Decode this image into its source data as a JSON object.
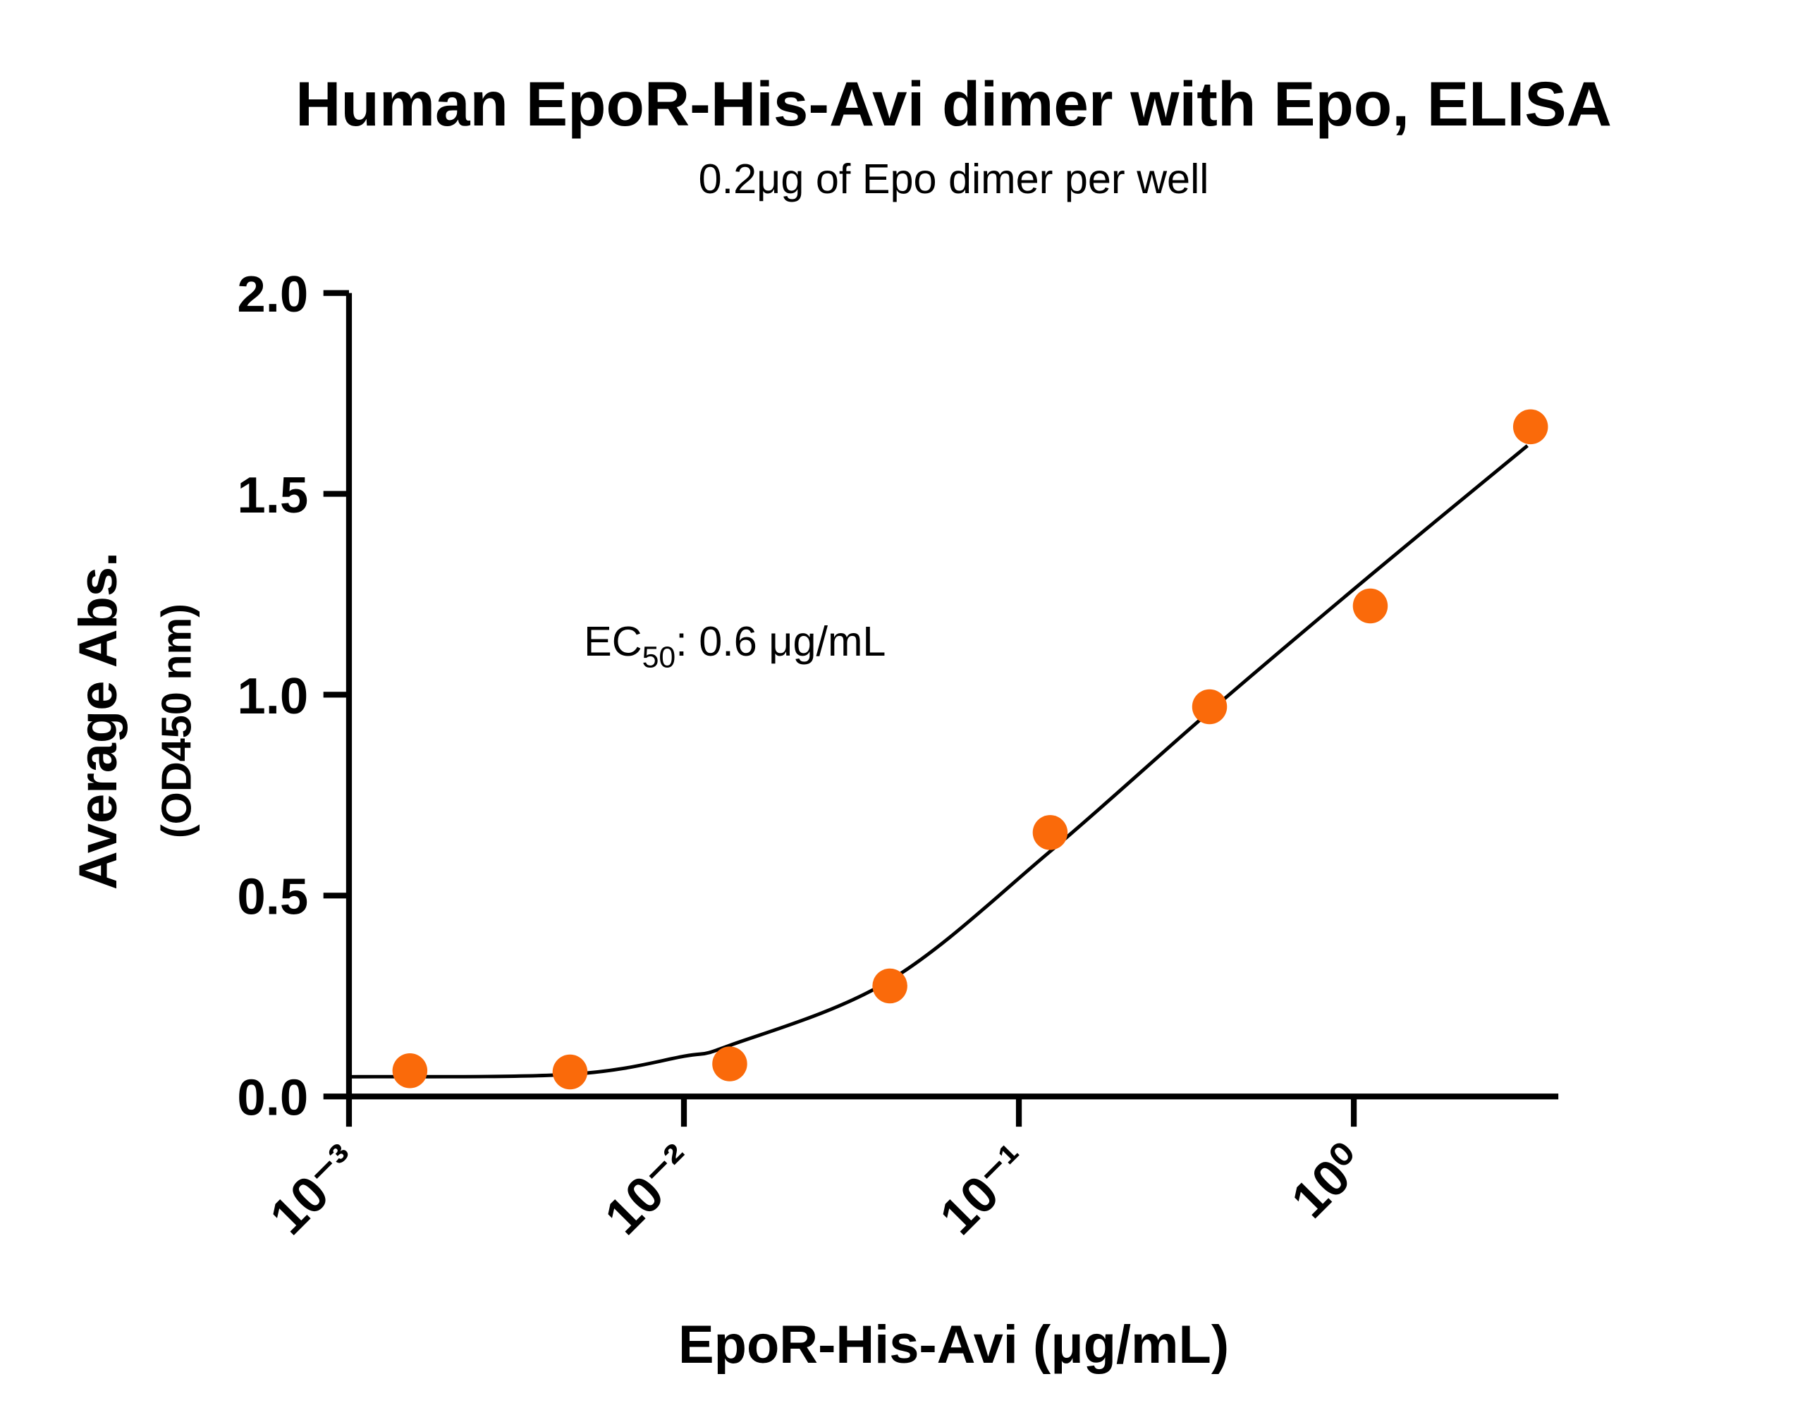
{
  "chart_data": {
    "type": "scatter",
    "title": "Human EpoR-His-Avi dimer with Epo, ELISA",
    "subtitle": "0.2μg of Epo dimer per well",
    "xlabel": "EpoR-His-Avi  (μg/mL)",
    "ylabel": [
      "Average Abs.",
      "(OD450 nm)"
    ],
    "annotation": [
      "EC",
      "50",
      ": 0.6 μg/mL"
    ],
    "xscale": "log",
    "xlim": [
      0.001,
      4.08
    ],
    "ylim": [
      0,
      2
    ],
    "xticks": [
      {
        "value": 0.001,
        "label": "10⁻³"
      },
      {
        "value": 0.01,
        "label": "10⁻²"
      },
      {
        "value": 0.1,
        "label": "10⁻¹"
      },
      {
        "value": 1,
        "label": "10⁰"
      }
    ],
    "yticks": [
      {
        "value": 0,
        "label": "0.0"
      },
      0.5,
      {
        "value": 1,
        "label": "1.0"
      },
      1.5,
      {
        "value": 2,
        "label": "2.0"
      }
    ],
    "series": [
      {
        "mode": "markers",
        "color": "#fa6a0a",
        "x": [
          0.00152,
          0.00457,
          0.0137,
          0.0412,
          0.124,
          0.371,
          1.12,
          3.37
        ],
        "values": [
          0.064,
          0.061,
          0.081,
          0.275,
          0.657,
          0.97,
          1.221,
          1.667
        ]
      },
      {
        "mode": "line",
        "color": "#000000",
        "x": [
          0.001,
          0.00457,
          0.01,
          0.0137,
          0.0412,
          0.124,
          0.371,
          1.12,
          3.3
        ],
        "values": [
          0.049,
          0.055,
          0.1,
          0.127,
          0.289,
          0.61,
          0.958,
          1.297,
          1.62
        ]
      }
    ]
  }
}
